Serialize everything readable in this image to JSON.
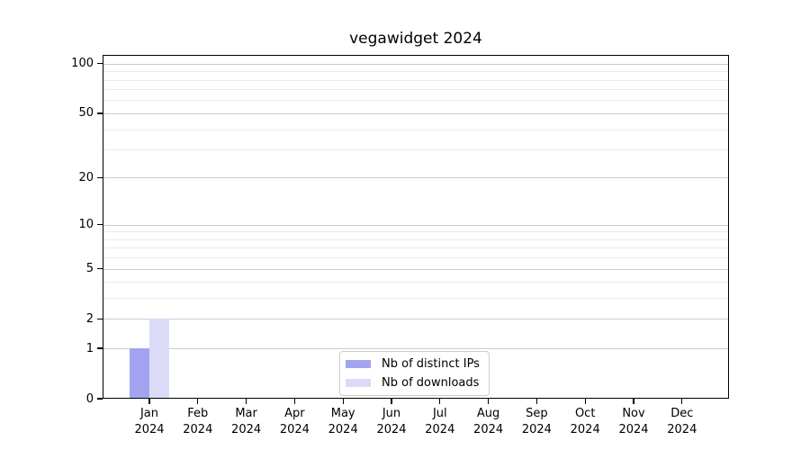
{
  "chart_data": {
    "type": "bar",
    "title": "vegawidget 2024",
    "categories": [
      "Jan 2024",
      "Feb 2024",
      "Mar 2024",
      "Apr 2024",
      "May 2024",
      "Jun 2024",
      "Jul 2024",
      "Aug 2024",
      "Sep 2024",
      "Oct 2024",
      "Nov 2024",
      "Dec 2024"
    ],
    "x_tick_months": [
      "Jan",
      "Feb",
      "Mar",
      "Apr",
      "May",
      "Jun",
      "Jul",
      "Aug",
      "Sep",
      "Oct",
      "Nov",
      "Dec"
    ],
    "x_tick_year": "2024",
    "series": [
      {
        "name": "Nb of distinct IPs",
        "color": "#a3a3f2",
        "values": [
          1,
          0,
          0,
          0,
          0,
          0,
          0,
          0,
          0,
          0,
          0,
          0
        ]
      },
      {
        "name": "Nb of downloads",
        "color": "#dbdbf8",
        "values": [
          2,
          0,
          0,
          0,
          0,
          0,
          0,
          0,
          0,
          0,
          0,
          0
        ]
      }
    ],
    "y_axis": {
      "scale": "symlog",
      "major_ticks": [
        0,
        1,
        2,
        5,
        10,
        20,
        50,
        100
      ],
      "minor_ticks": [
        3,
        4,
        6,
        7,
        8,
        9,
        30,
        40,
        60,
        70,
        80,
        90
      ],
      "max": 113
    },
    "legend": {
      "position": "lower center"
    },
    "grid": "horizontal",
    "colors": {
      "major_grid": "#cccccc",
      "minor_grid": "#ebebeb",
      "spine": "#000000",
      "text": "#000000",
      "legend_border": "#cccccc",
      "background": "#ffffff"
    }
  }
}
